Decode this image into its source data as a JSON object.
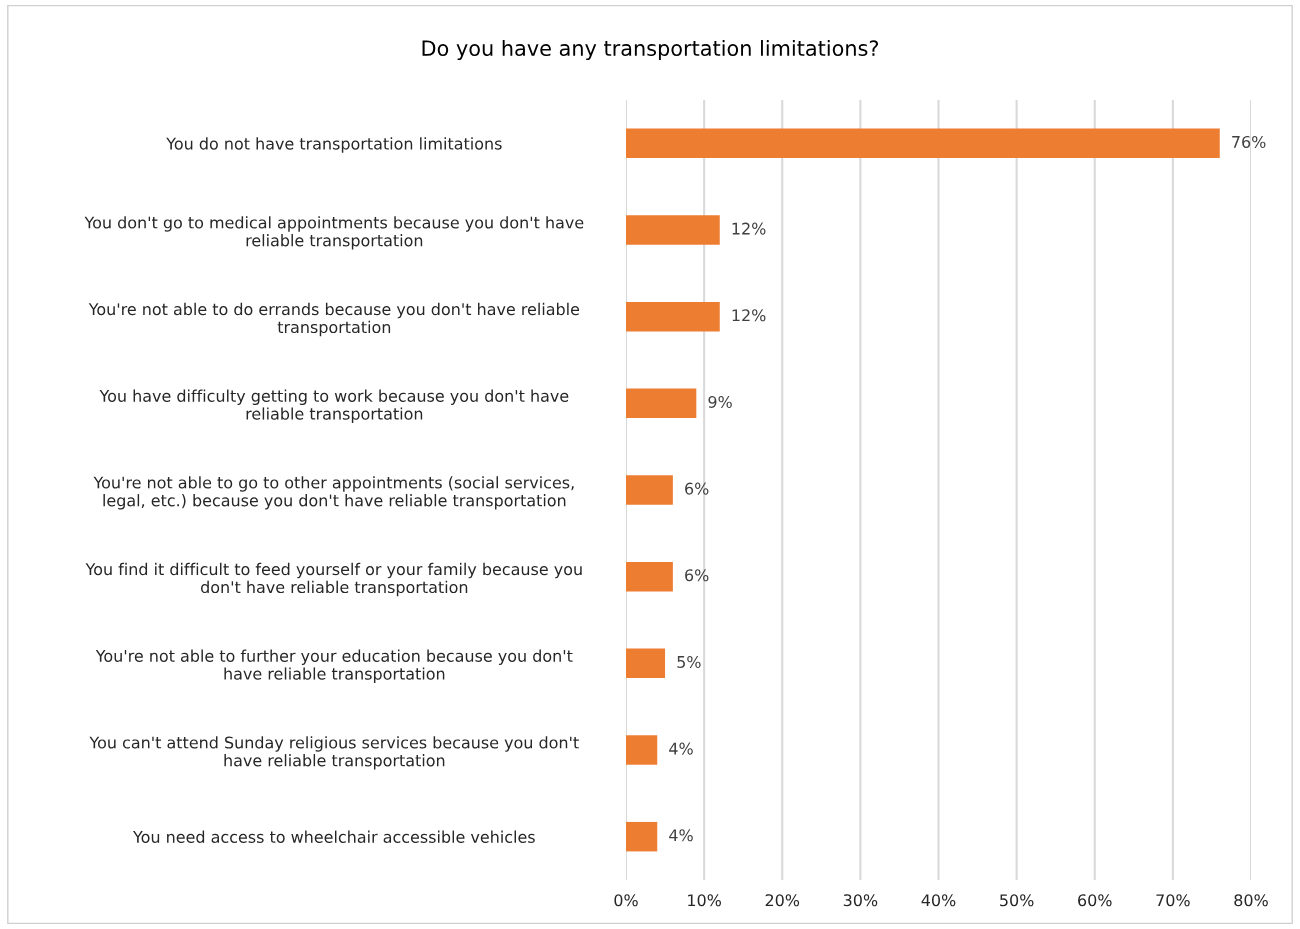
{
  "chart_data": {
    "type": "bar",
    "orientation": "horizontal",
    "title": "Do you have any transportation limitations?",
    "categories": [
      "You do not have transportation limitations",
      "You don't go to medical appointments because you don't have\nreliable transportation",
      "You're not able to do errands because you don't have reliable\ntransportation",
      "You have difficulty getting to work because you don't have\nreliable transportation",
      "You're not able to go to other appointments (social services,\nlegal, etc.) because you don't have reliable transportation",
      "You find it difficult to feed yourself or your family because you\ndon't have reliable transportation",
      "You're not able to further your education because you don't\nhave reliable transportation",
      "You can't attend Sunday religious services because you don't\nhave reliable transportation",
      "You need access to wheelchair accessible vehicles"
    ],
    "values": [
      76,
      12,
      12,
      9,
      6,
      6,
      5,
      4,
      4
    ],
    "value_labels": [
      "76%",
      "12%",
      "12%",
      "9%",
      "6%",
      "6%",
      "5%",
      "4%",
      "4%"
    ],
    "color": "#ed7d31",
    "xlim": [
      0,
      80
    ],
    "xticks": [
      {
        "value": 0,
        "label": "0%"
      },
      {
        "value": 10,
        "label": "10%"
      },
      {
        "value": 20,
        "label": "20%"
      },
      {
        "value": 30,
        "label": "30%"
      },
      {
        "value": 40,
        "label": "40%"
      },
      {
        "value": 50,
        "label": "50%"
      },
      {
        "value": 60,
        "label": "60%"
      },
      {
        "value": 70,
        "label": "70%"
      },
      {
        "value": 80,
        "label": "80%"
      }
    ],
    "grid": "x"
  }
}
